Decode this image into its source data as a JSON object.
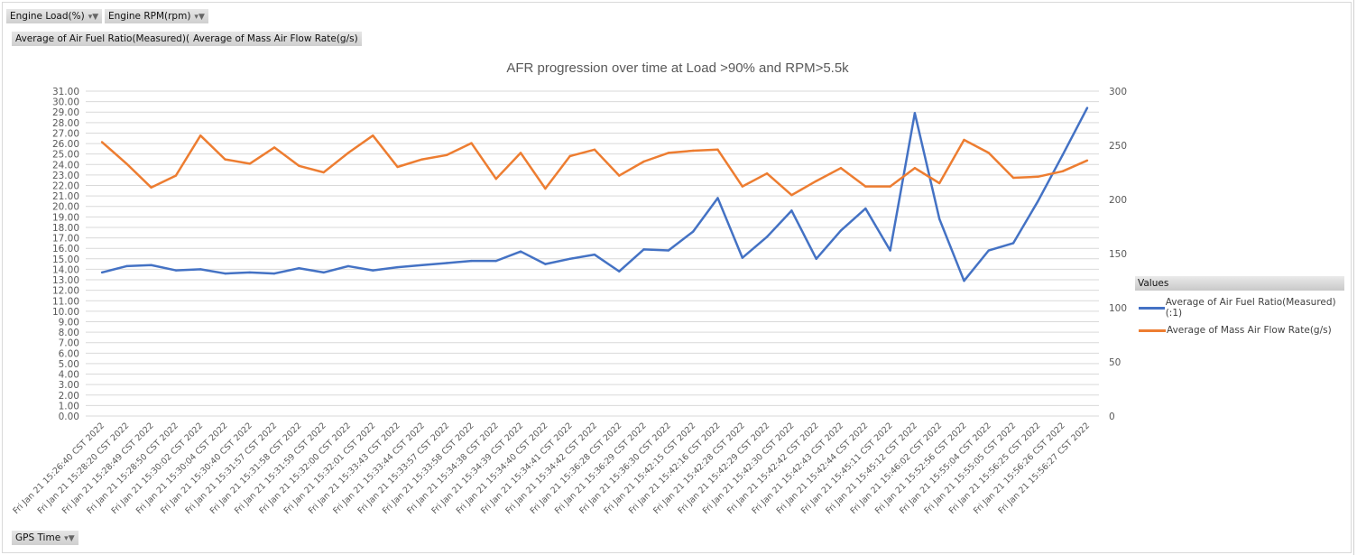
{
  "filters": {
    "engine_load": "Engine Load(%)",
    "engine_rpm": "Engine RPM(rpm)",
    "gps_time": "GPS Time"
  },
  "value_buttons": [
    "Average of Air Fuel Ratio(Measured)(:1)",
    "Average of Mass Air Flow Rate(g/s)"
  ],
  "icons": {
    "filter": "filter-dropdown-icon"
  },
  "legend": {
    "title": "Values"
  },
  "chart_data": {
    "type": "line",
    "title": "AFR progression over time at Load >90% and RPM>5.5k",
    "xlabel": "",
    "ylabel": "",
    "grid": true,
    "legend_placement": "right",
    "y_left": {
      "min": 0,
      "max": 31,
      "step": 1,
      "decimals": 2
    },
    "y_right": {
      "min": 0,
      "max": 300,
      "step": 50
    },
    "categories": [
      "Fri Jan 21 15:26:40 CST 2022",
      "Fri Jan 21 15:28:20 CST 2022",
      "Fri Jan 21 15:28:49 CST 2022",
      "Fri Jan 21 15:28:50 CST 2022",
      "Fri Jan 21 15:30:02 CST 2022",
      "Fri Jan 21 15:30:04 CST 2022",
      "Fri Jan 21 15:30:40 CST 2022",
      "Fri Jan 21 15:31:57 CST 2022",
      "Fri Jan 21 15:31:58 CST 2022",
      "Fri Jan 21 15:31:59 CST 2022",
      "Fri Jan 21 15:32:00 CST 2022",
      "Fri Jan 21 15:32:01 CST 2022",
      "Fri Jan 21 15:33:43 CST 2022",
      "Fri Jan 21 15:33:44 CST 2022",
      "Fri Jan 21 15:33:57 CST 2022",
      "Fri Jan 21 15:33:58 CST 2022",
      "Fri Jan 21 15:34:38 CST 2022",
      "Fri Jan 21 15:34:39 CST 2022",
      "Fri Jan 21 15:34:40 CST 2022",
      "Fri Jan 21 15:34:41 CST 2022",
      "Fri Jan 21 15:34:42 CST 2022",
      "Fri Jan 21 15:36:28 CST 2022",
      "Fri Jan 21 15:36:29 CST 2022",
      "Fri Jan 21 15:36:30 CST 2022",
      "Fri Jan 21 15:42:15 CST 2022",
      "Fri Jan 21 15:42:16 CST 2022",
      "Fri Jan 21 15:42:28 CST 2022",
      "Fri Jan 21 15:42:29 CST 2022",
      "Fri Jan 21 15:42:30 CST 2022",
      "Fri Jan 21 15:42:42 CST 2022",
      "Fri Jan 21 15:42:43 CST 2022",
      "Fri Jan 21 15:42:44 CST 2022",
      "Fri Jan 21 15:45:11 CST 2022",
      "Fri Jan 21 15:45:12 CST 2022",
      "Fri Jan 21 15:46:02 CST 2022",
      "Fri Jan 21 15:52:56 CST 2022",
      "Fri Jan 21 15:55:04 CST 2022",
      "Fri Jan 21 15:55:05 CST 2022",
      "Fri Jan 21 15:56:25 CST 2022",
      "Fri Jan 21 15:56:26 CST 2022",
      "Fri Jan 21 15:56:27 CST 2022"
    ],
    "series": [
      {
        "name": "Average of Air Fuel Ratio(Measured)(:1)",
        "axis": "left",
        "color": "#4472C4",
        "values": [
          13.7,
          14.3,
          14.4,
          13.9,
          14.0,
          13.6,
          13.7,
          13.6,
          14.1,
          13.7,
          14.3,
          13.9,
          14.2,
          14.4,
          14.6,
          14.8,
          14.8,
          15.7,
          14.5,
          15.0,
          15.4,
          13.8,
          15.9,
          15.8,
          17.6,
          20.8,
          15.1,
          17.1,
          19.6,
          15.0,
          17.7,
          19.8,
          15.8,
          28.9,
          18.8,
          12.9,
          15.8,
          16.5,
          20.5,
          24.9,
          29.4
        ]
      },
      {
        "name": "Average of Mass Air Flow Rate(g/s)",
        "axis": "right",
        "color": "#ED7D31",
        "values": [
          253,
          233,
          211,
          222,
          259,
          237,
          233,
          248,
          231,
          225,
          243,
          259,
          230,
          237,
          241,
          252,
          219,
          243,
          210,
          240,
          246,
          222,
          235,
          243,
          245,
          246,
          212,
          224,
          204,
          217,
          229,
          212,
          212,
          229,
          215,
          255,
          243,
          220,
          221,
          226,
          236
        ]
      }
    ]
  }
}
